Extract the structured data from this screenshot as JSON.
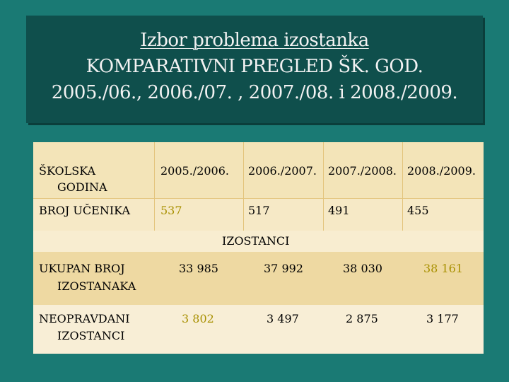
{
  "title": {
    "line1": "Izbor problema izostanka",
    "line2": "KOMPARATIVNI PREGLED ŠK. GOD.",
    "line3": "2005./06., 2006./07. , 2007./08. i 2008./2009."
  },
  "table": {
    "header": {
      "label_line1": "ŠKOLSKA",
      "label_line2": "GODINA",
      "years": [
        "2005./2006.",
        "2006./2007.",
        "2007./2008.",
        "2008./2009."
      ]
    },
    "students": {
      "label": "BROJ UČENIKA",
      "values": [
        "537",
        "517",
        "491",
        "455"
      ]
    },
    "section_label": "IZOSTANCI",
    "total_absences": {
      "label_line1": "UKUPAN BROJ",
      "label_line2": "IZOSTANAKA",
      "values": [
        "33 985",
        "37 992",
        "38 030",
        "38 161"
      ]
    },
    "unexcused_absences": {
      "label_line1": "NEOPRAVDANI",
      "label_line2": "IZOSTANCI",
      "values": [
        "3 802",
        "3 497",
        "2 875",
        "3 177"
      ]
    },
    "colors": {
      "highlight": "#a89000",
      "header_bg": "#f3e4b8",
      "title_bg": "#0f4f4c",
      "page_bg": "#1a7a74"
    }
  }
}
